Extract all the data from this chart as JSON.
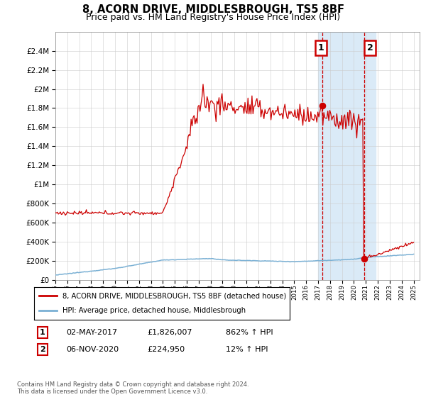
{
  "title": "8, ACORN DRIVE, MIDDLESBROUGH, TS5 8BF",
  "subtitle": "Price paid vs. HM Land Registry's House Price Index (HPI)",
  "legend_line1": "8, ACORN DRIVE, MIDDLESBROUGH, TS5 8BF (detached house)",
  "legend_line2": "HPI: Average price, detached house, Middlesbrough",
  "annotation1_label": "1",
  "annotation1_date": "02-MAY-2017",
  "annotation1_price": "£1,826,007",
  "annotation1_hpi": "862% ↑ HPI",
  "annotation2_label": "2",
  "annotation2_date": "06-NOV-2020",
  "annotation2_price": "£224,950",
  "annotation2_hpi": "12% ↑ HPI",
  "footer": "Contains HM Land Registry data © Crown copyright and database right 2024.\nThis data is licensed under the Open Government Licence v3.0.",
  "house_color": "#cc0000",
  "hpi_color": "#7ab0d4",
  "highlight_color": "#daeaf7",
  "vline_color": "#cc0000",
  "annotation_box_color": "#cc0000",
  "ylim": [
    0,
    2600000
  ],
  "yticks": [
    0,
    200000,
    400000,
    600000,
    800000,
    1000000,
    1200000,
    1400000,
    1600000,
    1800000,
    2000000,
    2200000,
    2400000
  ],
  "xstart": 1995,
  "xend": 2025,
  "sale1_year": 2017.33,
  "sale1_price": 1826007,
  "sale2_year": 2020.84,
  "sale2_price": 224950
}
